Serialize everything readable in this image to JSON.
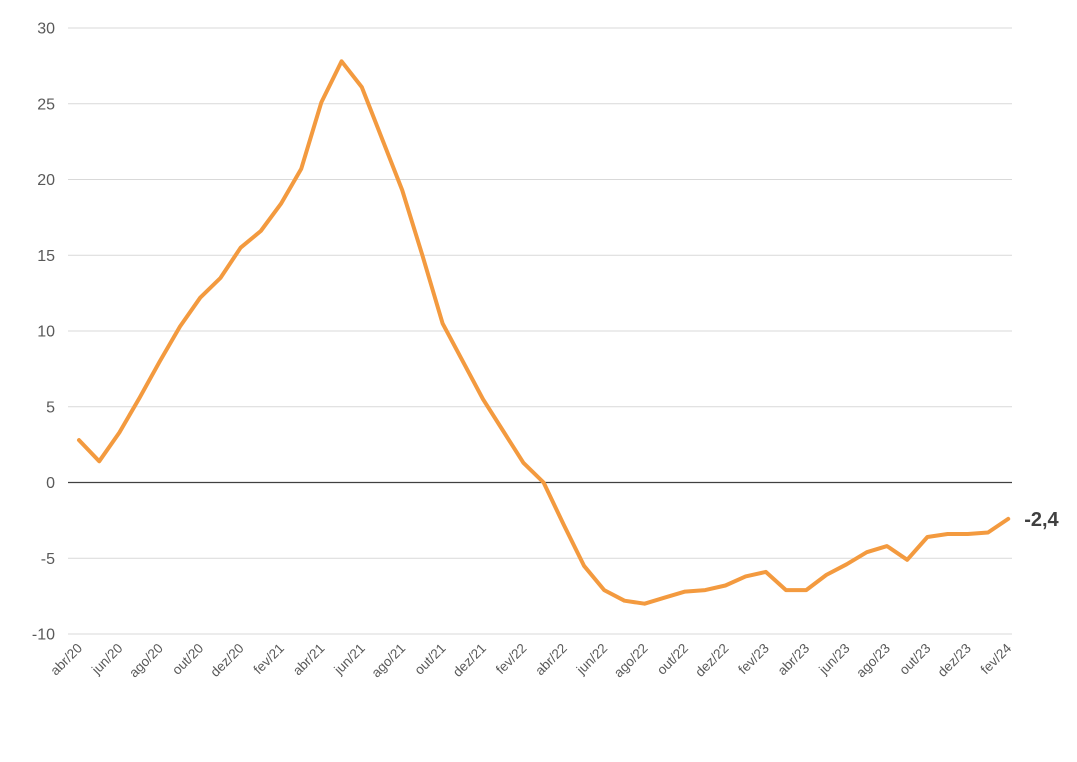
{
  "chart_data": {
    "type": "line",
    "title": "",
    "xlabel": "",
    "ylabel": "",
    "ylim": [
      -10,
      30
    ],
    "yticks": [
      "30",
      "25",
      "20",
      "15",
      "10",
      "5",
      "0",
      "-5",
      "-10"
    ],
    "grid": true,
    "legend": "none",
    "x": [
      "abr/20",
      "mai/20",
      "jun/20",
      "jul/20",
      "ago/20",
      "set/20",
      "out/20",
      "nov/20",
      "dez/20",
      "jan/21",
      "fev/21",
      "mar/21",
      "abr/21",
      "mai/21",
      "jun/21",
      "jul/21",
      "ago/21",
      "set/21",
      "out/21",
      "nov/21",
      "dez/21",
      "jan/22",
      "fev/22",
      "mar/22",
      "abr/22",
      "mai/22",
      "jun/22",
      "jul/22",
      "ago/22",
      "set/22",
      "out/22",
      "nov/22",
      "dez/22",
      "jan/23",
      "fev/23",
      "mar/23",
      "abr/23",
      "mai/23",
      "jun/23",
      "jul/23",
      "ago/23",
      "set/23",
      "out/23",
      "nov/23",
      "dez/23",
      "jan/24",
      "fev/24"
    ],
    "x_tick_labels": [
      "abr/20",
      "jun/20",
      "ago/20",
      "out/20",
      "dez/20",
      "fev/21",
      "abr/21",
      "jun/21",
      "ago/21",
      "out/21",
      "dez/21",
      "fev/22",
      "abr/22",
      "jun/22",
      "ago/22",
      "out/22",
      "dez/22",
      "fev/23",
      "abr/23",
      "jun/23",
      "ago/23",
      "out/23",
      "dez/23",
      "fev/24"
    ],
    "series": [
      {
        "color": "#f39a3f",
        "values": [
          2.8,
          1.4,
          3.3,
          5.6,
          8.0,
          10.3,
          12.2,
          13.5,
          15.5,
          16.6,
          18.4,
          20.7,
          25.1,
          27.8,
          26.1,
          22.7,
          19.3,
          15.0,
          10.5,
          8.0,
          5.5,
          3.4,
          1.3,
          0.0,
          -2.8,
          -5.5,
          -7.1,
          -7.8,
          -8.0,
          -7.6,
          -7.2,
          -7.1,
          -6.8,
          -6.2,
          -5.9,
          -7.1,
          -7.1,
          -6.1,
          -5.4,
          -4.6,
          -4.2,
          -5.1,
          -3.6,
          -3.4,
          -3.4,
          -3.3,
          -2.4
        ]
      }
    ],
    "annotations": [
      {
        "text": "-2,4",
        "at": "fev/24"
      }
    ]
  }
}
